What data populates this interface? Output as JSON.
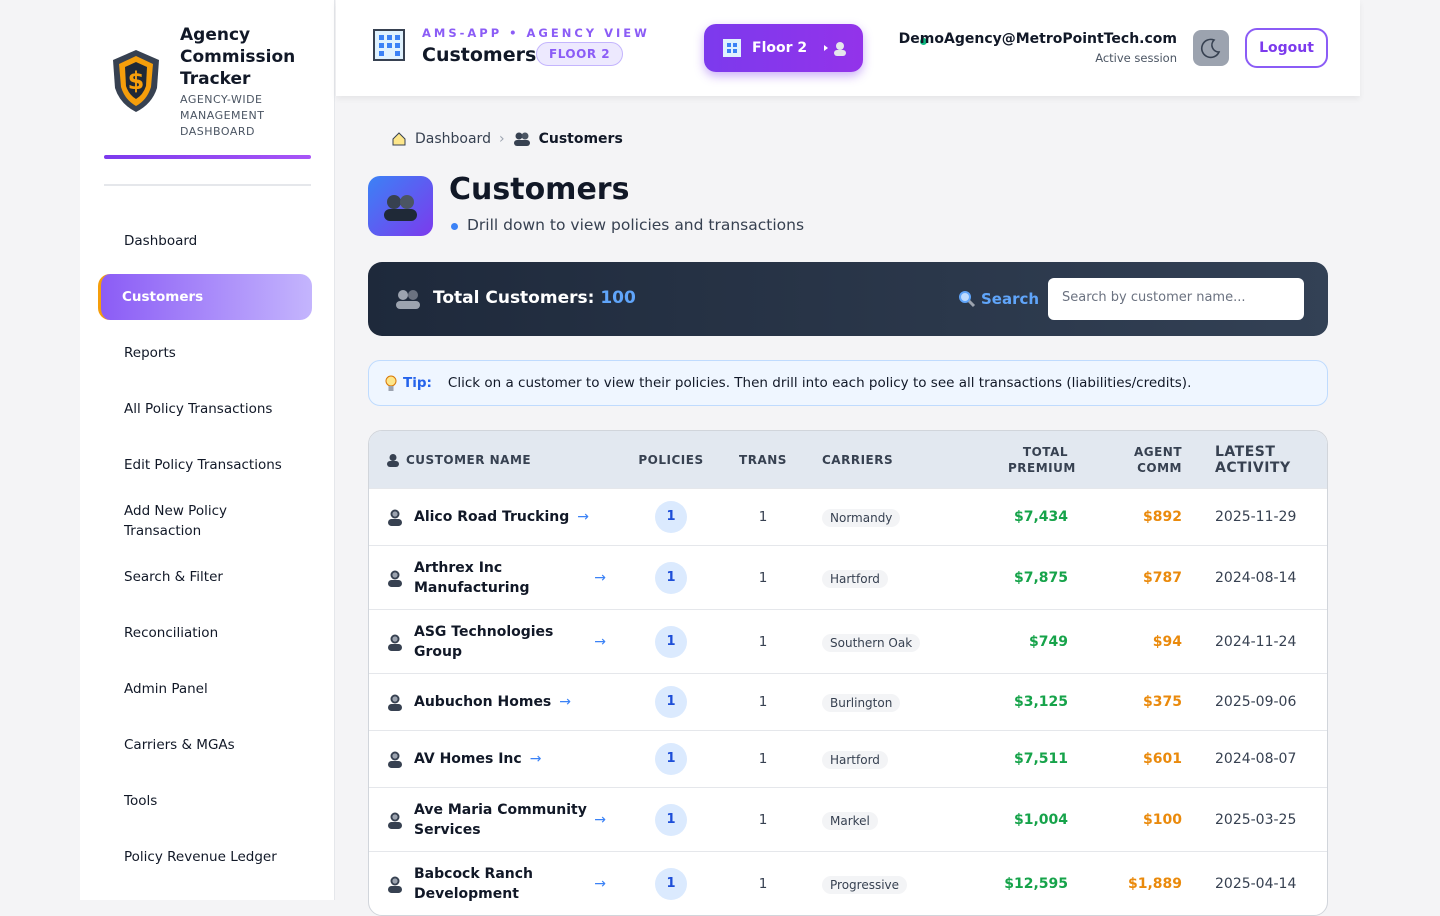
{
  "sidebar": {
    "title": "Agency Commission Tracker",
    "subtitle": "AGENCY-WIDE MANAGEMENT DASHBOARD",
    "nav": [
      "Dashboard",
      "Customers",
      "Reports",
      "All Policy Transactions",
      "Edit Policy Transactions",
      "Add New Policy Transaction",
      "Search & Filter",
      "Reconciliation",
      "Admin Panel",
      "Carriers & MGAs",
      "Tools",
      "Policy Revenue Ledger"
    ],
    "active": 1
  },
  "header": {
    "app_label": "AMS-APP • AGENCY VIEW",
    "page": "Customers",
    "badge": "FLOOR 2",
    "floor_button": "Floor 2",
    "user": "DemoAgency@MetroPointTech.com",
    "session": "Active session",
    "logout": "Logout"
  },
  "breadcrumb": [
    "Dashboard",
    "Customers"
  ],
  "page": {
    "title": "Customers",
    "subtitle": "Drill down to view policies and transactions"
  },
  "banner": {
    "label": "Total Customers:",
    "count": 100,
    "search": "Search",
    "placeholder": "Search by customer name..."
  },
  "tip": {
    "label": "Tip:",
    "text": "Click on a customer to view their policies. Then drill into each policy to see all transactions (liabilities/credits)."
  },
  "table": {
    "columns": [
      "CUSTOMER NAME",
      "POLICIES",
      "TRANS",
      "CARRIERS",
      "TOTAL PREMIUM",
      "AGENT COMM",
      "LATEST ACTIVITY"
    ],
    "rows": [
      [
        "Alico Road Trucking",
        1,
        1,
        "Normandy",
        "$7,434",
        "$892",
        "2025-11-29"
      ],
      [
        "Arthrex Inc Manufacturing",
        1,
        1,
        "Hartford",
        "$7,875",
        "$787",
        "2024-08-14"
      ],
      [
        "ASG Technologies Group",
        1,
        1,
        "Southern Oak",
        "$749",
        "$94",
        "2024-11-24"
      ],
      [
        "Aubuchon Homes",
        1,
        1,
        "Burlington",
        "$3,125",
        "$375",
        "2025-09-06"
      ],
      [
        "AV Homes Inc",
        1,
        1,
        "Hartford",
        "$7,511",
        "$601",
        "2024-08-07"
      ],
      [
        "Ave Maria Community Services",
        1,
        1,
        "Markel",
        "$1,004",
        "$100",
        "2025-03-25"
      ],
      [
        "Babcock Ranch Development",
        1,
        1,
        "Progressive",
        "$12,595",
        "$1,889",
        "2025-04-14"
      ]
    ]
  }
}
